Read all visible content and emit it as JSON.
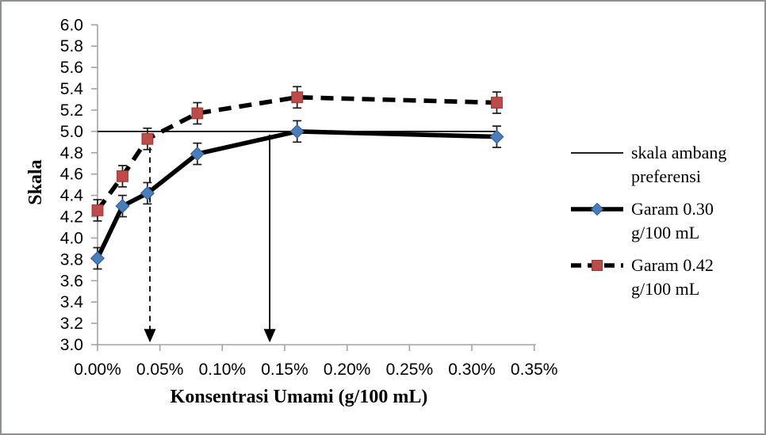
{
  "styles": {
    "marker_blue": "#4a7ebb",
    "marker_blue_edge": "#2e5b8f",
    "marker_red": "#be4b48",
    "marker_red_edge": "#8f3835",
    "line_black": "#000000",
    "error_bar_color": "#1a1a1a",
    "axis_gray": "#a3a3a3",
    "text_black": "#000000",
    "frame_border": "#8f9294"
  },
  "chart_data": {
    "type": "line",
    "title": "",
    "xlabel": "Konsentrasi Umami (g/100 mL)",
    "ylabel": "Skala",
    "xlim": [
      0,
      0.35
    ],
    "ylim": [
      3.0,
      6.0
    ],
    "x_tick_values": [
      0,
      0.05,
      0.1,
      0.15,
      0.2,
      0.25,
      0.3,
      0.35
    ],
    "x_tick_labels": [
      "0.00%",
      "0.05%",
      "0.10%",
      "0.15%",
      "0.20%",
      "0.25%",
      "0.30%",
      "0.35%"
    ],
    "y_tick_step": 0.2,
    "y_tick_labels": [
      "3.0",
      "3.2",
      "3.4",
      "3.6",
      "3.8",
      "4.0",
      "4.2",
      "4.4",
      "4.6",
      "4.8",
      "5.0",
      "5.2",
      "5.4",
      "5.6",
      "5.8",
      "6.0"
    ],
    "grid": false,
    "legend_position": "right",
    "x": [
      0,
      0.02,
      0.04,
      0.08,
      0.16,
      0.32
    ],
    "series": [
      {
        "name": "skala ambang preferensi",
        "line": "thin-solid",
        "marker": "none",
        "values": [
          5.0,
          5.0,
          5.0,
          5.0,
          5.0,
          5.0
        ]
      },
      {
        "name": "Garam 0.30 g/100 mL",
        "line": "thick-solid",
        "marker": "diamond",
        "values": [
          3.81,
          4.3,
          4.42,
          4.79,
          5.0,
          4.95
        ],
        "error": 0.1
      },
      {
        "name": "Garam 0.42 g/100 mL",
        "line": "thick-dashed",
        "marker": "square",
        "values": [
          4.26,
          4.58,
          4.93,
          5.17,
          5.32,
          5.27
        ],
        "error": 0.1
      }
    ],
    "annotations": [
      {
        "name": "threshold-arrow-garam-0.42",
        "style": "dashed",
        "x": 0.042,
        "y_start": 4.85,
        "y_end": 3.02
      },
      {
        "name": "threshold-arrow-garam-0.30",
        "style": "solid",
        "x": 0.138,
        "y_start": 4.97,
        "y_end": 3.02
      }
    ]
  }
}
